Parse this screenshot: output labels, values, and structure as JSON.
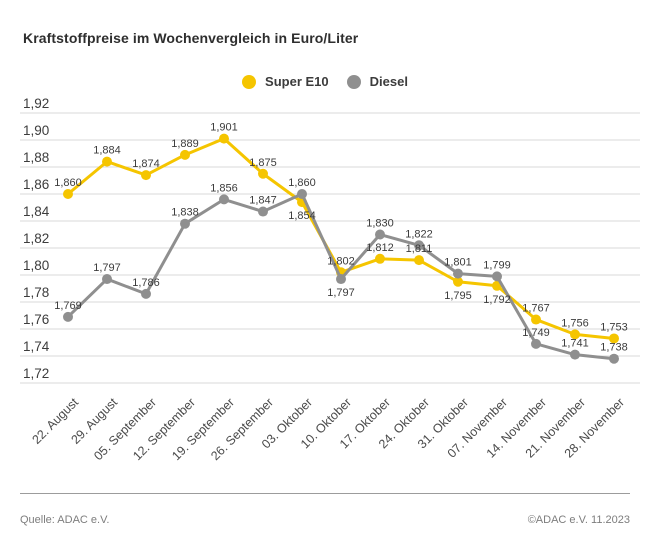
{
  "chart_data": {
    "type": "line",
    "title": "Kraftstoffpreise im Wochenvergleich in Euro/Liter",
    "unit": "Euro/Liter",
    "categories": [
      "22. August",
      "29. August",
      "05. September",
      "12. September",
      "19. September",
      "26. September",
      "03. Oktober",
      "10. Oktober",
      "17. Oktober",
      "24. Oktober",
      "31. Oktober",
      "07. November",
      "14. November",
      "21. November",
      "28. November"
    ],
    "series": [
      {
        "name": "Super E10",
        "color": "#F5C500",
        "values": [
          1.86,
          1.884,
          1.874,
          1.889,
          1.901,
          1.875,
          1.854,
          1.802,
          1.812,
          1.811,
          1.795,
          1.792,
          1.767,
          1.756,
          1.753
        ],
        "label_positions": [
          "above",
          "above",
          "above",
          "above",
          "above",
          "above",
          "below",
          "above",
          "above",
          "above",
          "below",
          "below",
          "above",
          "above",
          "above"
        ]
      },
      {
        "name": "Diesel",
        "color": "#8F8F8F",
        "values": [
          1.769,
          1.797,
          1.786,
          1.838,
          1.856,
          1.847,
          1.86,
          1.797,
          1.83,
          1.822,
          1.801,
          1.799,
          1.749,
          1.741,
          1.738
        ],
        "label_positions": [
          "above",
          "above",
          "above",
          "above",
          "above",
          "above",
          "above",
          "below",
          "above",
          "above",
          "above",
          "above",
          "above",
          "above",
          "above"
        ]
      }
    ],
    "ylim": [
      1.72,
      1.92
    ],
    "ytick_step": 0.02,
    "tick_label_decimals": 2,
    "value_label_decimals": 3,
    "decimal_separator": ",",
    "grid": true,
    "legend_position": "top-center"
  },
  "colors": {
    "grid": "#D8D8D8",
    "text": "#3C3C3C",
    "axis_text": "#4A4A4A",
    "muted_text": "#7D7D7D"
  },
  "footer": {
    "source": "Quelle: ADAC e.V.",
    "copyright": "©ADAC e.V. 11.2023"
  }
}
